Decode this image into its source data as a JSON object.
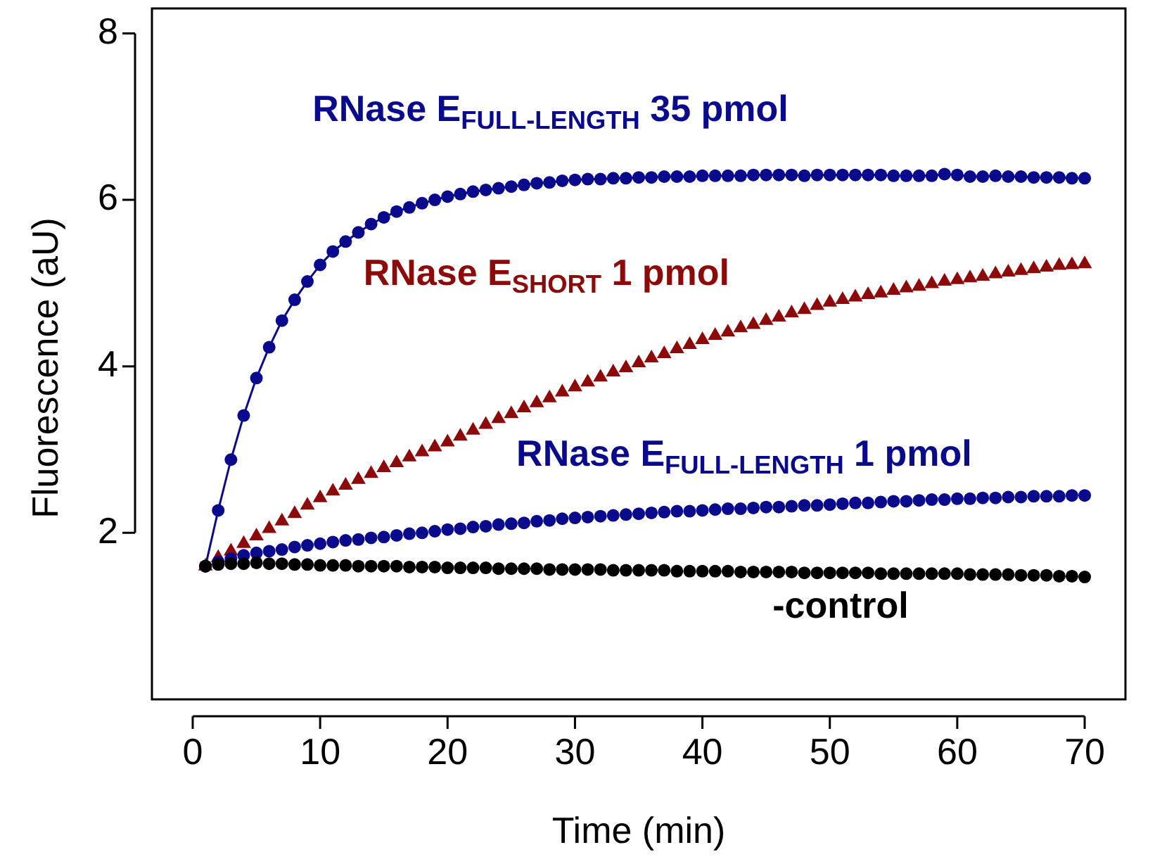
{
  "chart_data": {
    "type": "scatter",
    "xlabel": "Time (min)",
    "ylabel": "Fluorescence (aU)",
    "x": [
      1,
      2,
      3,
      4,
      5,
      6,
      7,
      8,
      9,
      10,
      11,
      12,
      13,
      14,
      15,
      16,
      17,
      18,
      19,
      20,
      21,
      22,
      23,
      24,
      25,
      26,
      27,
      28,
      29,
      30,
      31,
      32,
      33,
      34,
      35,
      36,
      37,
      38,
      39,
      40,
      41,
      42,
      43,
      44,
      45,
      46,
      47,
      48,
      49,
      50,
      51,
      52,
      53,
      54,
      55,
      56,
      57,
      58,
      59,
      60,
      61,
      62,
      63,
      64,
      65,
      66,
      67,
      68,
      69,
      70
    ],
    "xlim": [
      -3.2,
      73.2
    ],
    "xticks": [
      0,
      10,
      20,
      30,
      40,
      50,
      60,
      70
    ],
    "ylim": [
      0,
      8.3
    ],
    "yticks": [
      2,
      4,
      6,
      8
    ],
    "grid": false,
    "legend": false,
    "series": [
      {
        "name": "RNase E$_{FULL-LENGTH}$ 35 pmol",
        "type": "line",
        "marker": "circle",
        "line_style": "solid",
        "color": "#0a0a8c",
        "values": [
          1.6,
          2.27,
          2.88,
          3.41,
          3.86,
          4.23,
          4.55,
          4.8,
          5.02,
          5.22,
          5.38,
          5.5,
          5.61,
          5.71,
          5.79,
          5.86,
          5.91,
          5.96,
          6.0,
          6.04,
          6.07,
          6.1,
          6.12,
          6.14,
          6.16,
          6.18,
          6.2,
          6.21,
          6.23,
          6.24,
          6.25,
          6.25,
          6.26,
          6.26,
          6.27,
          6.27,
          6.28,
          6.28,
          6.28,
          6.29,
          6.29,
          6.29,
          6.29,
          6.3,
          6.3,
          6.3,
          6.3,
          6.29,
          6.3,
          6.3,
          6.3,
          6.3,
          6.3,
          6.3,
          6.29,
          6.29,
          6.29,
          6.29,
          6.31,
          6.3,
          6.28,
          6.28,
          6.29,
          6.28,
          6.28,
          6.27,
          6.27,
          6.27,
          6.26,
          6.26
        ]
      },
      {
        "name": "RNase E$_{SHORT}$ 1 pmol",
        "type": "scatter",
        "marker": "triangle",
        "color": "#8c0a0a",
        "values": [
          1.6,
          1.7,
          1.78,
          1.87,
          1.96,
          2.05,
          2.14,
          2.23,
          2.33,
          2.42,
          2.5,
          2.57,
          2.64,
          2.71,
          2.78,
          2.84,
          2.91,
          2.97,
          3.03,
          3.09,
          3.16,
          3.23,
          3.3,
          3.37,
          3.43,
          3.5,
          3.56,
          3.62,
          3.69,
          3.75,
          3.81,
          3.87,
          3.93,
          3.98,
          4.04,
          4.1,
          4.15,
          4.21,
          4.26,
          4.32,
          4.37,
          4.41,
          4.46,
          4.5,
          4.55,
          4.59,
          4.64,
          4.68,
          4.73,
          4.77,
          4.8,
          4.83,
          4.86,
          4.88,
          4.91,
          4.94,
          4.96,
          4.99,
          5.02,
          5.04,
          5.06,
          5.08,
          5.11,
          5.13,
          5.15,
          5.17,
          5.19,
          5.21,
          5.22,
          5.23
        ]
      },
      {
        "name": "RNase E$_{FULL-LENGTH}$ 1 pmol",
        "type": "scatter",
        "marker": "circle",
        "color": "#0a0a8c",
        "values": [
          1.6,
          1.65,
          1.69,
          1.73,
          1.76,
          1.78,
          1.8,
          1.83,
          1.85,
          1.87,
          1.89,
          1.91,
          1.92,
          1.94,
          1.95,
          1.97,
          1.99,
          2.0,
          2.02,
          2.04,
          2.05,
          2.07,
          2.08,
          2.1,
          2.11,
          2.12,
          2.14,
          2.15,
          2.17,
          2.18,
          2.19,
          2.2,
          2.21,
          2.22,
          2.23,
          2.24,
          2.25,
          2.26,
          2.26,
          2.27,
          2.28,
          2.29,
          2.29,
          2.3,
          2.31,
          2.31,
          2.32,
          2.33,
          2.33,
          2.34,
          2.35,
          2.36,
          2.36,
          2.37,
          2.38,
          2.38,
          2.39,
          2.4,
          2.4,
          2.41,
          2.41,
          2.42,
          2.42,
          2.43,
          2.43,
          2.44,
          2.44,
          2.44,
          2.45,
          2.45
        ]
      },
      {
        "name": "-control",
        "type": "scatter",
        "marker": "circle",
        "color": "#000000",
        "values": [
          1.6,
          1.62,
          1.63,
          1.63,
          1.64,
          1.63,
          1.63,
          1.62,
          1.62,
          1.61,
          1.61,
          1.61,
          1.6,
          1.6,
          1.6,
          1.6,
          1.59,
          1.59,
          1.59,
          1.58,
          1.58,
          1.58,
          1.58,
          1.57,
          1.57,
          1.57,
          1.57,
          1.56,
          1.56,
          1.56,
          1.56,
          1.56,
          1.55,
          1.55,
          1.55,
          1.55,
          1.55,
          1.54,
          1.54,
          1.54,
          1.54,
          1.54,
          1.53,
          1.53,
          1.53,
          1.53,
          1.53,
          1.52,
          1.52,
          1.52,
          1.52,
          1.52,
          1.52,
          1.51,
          1.51,
          1.51,
          1.51,
          1.51,
          1.51,
          1.51,
          1.5,
          1.5,
          1.5,
          1.5,
          1.49,
          1.49,
          1.49,
          1.48,
          1.48,
          1.47
        ]
      }
    ]
  }
}
